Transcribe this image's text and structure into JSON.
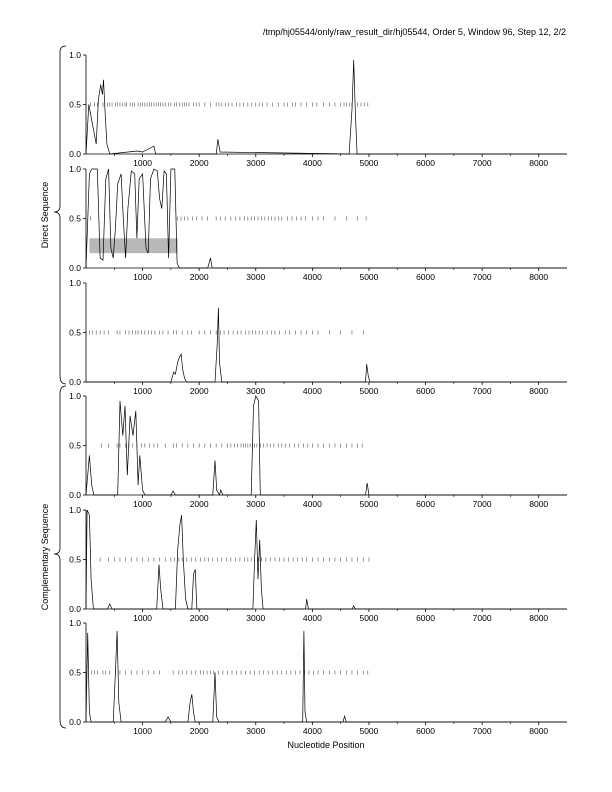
{
  "header": {
    "path_text": "/tmp/hj05544/only/raw_result_dir/hj05544, Order 5, Window 96, Step 12, 2/2"
  },
  "x_axis_label": "Nucleotide Position",
  "group_labels": {
    "direct": "Direct Sequence",
    "complementary": "Complementary Sequence"
  },
  "chart_data": [
    {
      "type": "line",
      "group": "direct",
      "frame": 1,
      "xlim": [
        0,
        8500
      ],
      "ylim": [
        0,
        1
      ],
      "yticks": [
        "0.0",
        "0.5",
        "1.0"
      ],
      "xticks": [
        1000,
        2000,
        3000,
        4000,
        5000,
        6000,
        7000,
        8000
      ],
      "points": [
        [
          0,
          0
        ],
        [
          50,
          0.5
        ],
        [
          180,
          0.1
        ],
        [
          220,
          0.55
        ],
        [
          260,
          0.7
        ],
        [
          290,
          0.6
        ],
        [
          310,
          0.75
        ],
        [
          340,
          0.4
        ],
        [
          370,
          0.1
        ],
        [
          420,
          0
        ],
        [
          900,
          0.03
        ],
        [
          1000,
          0.02
        ],
        [
          1200,
          0.08
        ],
        [
          1230,
          0
        ],
        [
          2300,
          0
        ],
        [
          2330,
          0.15
        ],
        [
          2370,
          0.02
        ],
        [
          4650,
          0
        ],
        [
          4700,
          0.45
        ],
        [
          4730,
          0.95
        ],
        [
          4760,
          0.4
        ],
        [
          4790,
          0
        ],
        [
          8500,
          0
        ]
      ],
      "marks_y": 0.5,
      "marks": [
        80,
        150,
        200,
        300,
        380,
        420,
        460,
        520,
        560,
        600,
        650,
        690,
        720,
        780,
        820,
        860,
        920,
        960,
        1000,
        1040,
        1080,
        1120,
        1160,
        1200,
        1240,
        1280,
        1320,
        1360,
        1400,
        1460,
        1500,
        1560,
        1600,
        1650,
        1700,
        1740,
        1780,
        1820,
        1900,
        1950,
        2000,
        2100,
        2200,
        2300,
        2350,
        2400,
        2460,
        2520,
        2580,
        2660,
        2720,
        2780,
        2860,
        2920,
        3000,
        3060,
        3120,
        3200,
        3300,
        3400,
        3500,
        3560,
        3650,
        3700,
        3800,
        3900,
        4000,
        4080,
        4200,
        4300,
        4400,
        4500,
        4560,
        4600,
        4660,
        4700,
        4800,
        4860,
        4920,
        4980
      ]
    },
    {
      "type": "line",
      "group": "direct",
      "frame": 2,
      "xlim": [
        0,
        8500
      ],
      "ylim": [
        0,
        1
      ],
      "yticks": [
        "0.0",
        "0.5",
        "1.0"
      ],
      "xticks": [
        1000,
        2000,
        3000,
        4000,
        5000,
        6000,
        7000,
        8000
      ],
      "points": [
        [
          0,
          0
        ],
        [
          60,
          0.95
        ],
        [
          100,
          1
        ],
        [
          200,
          1
        ],
        [
          250,
          0.1
        ],
        [
          300,
          0.08
        ],
        [
          350,
          0.9
        ],
        [
          400,
          1
        ],
        [
          440,
          0.2
        ],
        [
          480,
          0.1
        ],
        [
          520,
          0.4
        ],
        [
          560,
          0.85
        ],
        [
          620,
          0.95
        ],
        [
          660,
          0.5
        ],
        [
          700,
          0.1
        ],
        [
          740,
          0.6
        ],
        [
          800,
          0.98
        ],
        [
          860,
          0.95
        ],
        [
          900,
          0.3
        ],
        [
          940,
          0.9
        ],
        [
          1000,
          0.95
        ],
        [
          1060,
          0.2
        ],
        [
          1100,
          0.15
        ],
        [
          1140,
          0.9
        ],
        [
          1200,
          1
        ],
        [
          1260,
          0.98
        ],
        [
          1300,
          0.7
        ],
        [
          1340,
          0.6
        ],
        [
          1380,
          0.98
        ],
        [
          1420,
          0.95
        ],
        [
          1460,
          0.1
        ],
        [
          1500,
          1
        ],
        [
          1570,
          1
        ],
        [
          1610,
          0.05
        ],
        [
          1650,
          0
        ],
        [
          2150,
          0
        ],
        [
          2200,
          0.1
        ],
        [
          2230,
          0
        ],
        [
          8500,
          0
        ]
      ],
      "highlight_band": {
        "x": [
          60,
          1620
        ],
        "y": [
          0.15,
          0.3
        ]
      },
      "marks_y": 0.5,
      "marks": [
        80,
        1620,
        1680,
        1740,
        1800,
        1880,
        1950,
        2050,
        2150,
        2300,
        2380,
        2460,
        2560,
        2640,
        2720,
        2800,
        2860,
        2920,
        2980,
        3040,
        3100,
        3160,
        3220,
        3280,
        3340,
        3400,
        3460,
        3560,
        3640,
        3720,
        3800,
        3880,
        4000,
        4100,
        4200,
        4400,
        4600,
        4800,
        4950
      ]
    },
    {
      "type": "line",
      "group": "direct",
      "frame": 3,
      "xlim": [
        0,
        8500
      ],
      "ylim": [
        0,
        1
      ],
      "yticks": [
        "0.0",
        "0.5",
        "1.0"
      ],
      "xticks": [
        1000,
        2000,
        3000,
        4000,
        5000,
        6000,
        7000,
        8000
      ],
      "points": [
        [
          0,
          0
        ],
        [
          1500,
          0
        ],
        [
          1550,
          0.1
        ],
        [
          1580,
          0.08
        ],
        [
          1620,
          0.2
        ],
        [
          1650,
          0.25
        ],
        [
          1680,
          0.28
        ],
        [
          1710,
          0.12
        ],
        [
          1740,
          0.04
        ],
        [
          1780,
          0
        ],
        [
          2280,
          0
        ],
        [
          2320,
          0.4
        ],
        [
          2340,
          0.75
        ],
        [
          2360,
          0.2
        ],
        [
          2400,
          0
        ],
        [
          4940,
          0
        ],
        [
          4960,
          0.18
        ],
        [
          4990,
          0.05
        ],
        [
          5020,
          0
        ],
        [
          8500,
          0
        ]
      ],
      "marks_y": 0.5,
      "marks": [
        60,
        120,
        180,
        250,
        320,
        400,
        550,
        600,
        700,
        760,
        820,
        880,
        920,
        980,
        1040,
        1100,
        1160,
        1220,
        1300,
        1360,
        1450,
        1550,
        1600,
        1700,
        1800,
        1860,
        2000,
        2100,
        2200,
        2300,
        2380,
        2440,
        2520,
        2600,
        2680,
        2740,
        2820,
        2880,
        2940,
        3000,
        3060,
        3120,
        3200,
        3280,
        3340,
        3420,
        3520,
        3600,
        3700,
        3800,
        3900,
        4000,
        4100,
        4300,
        4500,
        4700,
        4900
      ]
    },
    {
      "type": "line",
      "group": "complementary",
      "frame": 4,
      "xlim": [
        0,
        8500
      ],
      "ylim": [
        0,
        1
      ],
      "yticks": [
        "0.0",
        "0.5",
        "1.0"
      ],
      "xticks": [
        1000,
        2000,
        3000,
        4000,
        5000,
        6000,
        7000,
        8000
      ],
      "points": [
        [
          0,
          0
        ],
        [
          60,
          0.4
        ],
        [
          100,
          0.1
        ],
        [
          140,
          0
        ],
        [
          560,
          0
        ],
        [
          600,
          0.95
        ],
        [
          650,
          0.6
        ],
        [
          690,
          0.9
        ],
        [
          730,
          0.2
        ],
        [
          780,
          0.8
        ],
        [
          830,
          0.6
        ],
        [
          880,
          0.85
        ],
        [
          920,
          0.1
        ],
        [
          950,
          0.4
        ],
        [
          1000,
          0.05
        ],
        [
          1040,
          0
        ],
        [
          1500,
          0
        ],
        [
          1540,
          0.04
        ],
        [
          1580,
          0
        ],
        [
          2240,
          0
        ],
        [
          2280,
          0.35
        ],
        [
          2310,
          0.05
        ],
        [
          2360,
          0
        ],
        [
          2380,
          0.05
        ],
        [
          2420,
          0
        ],
        [
          2920,
          0
        ],
        [
          2960,
          0.9
        ],
        [
          3000,
          1
        ],
        [
          3050,
          0.95
        ],
        [
          3080,
          0
        ],
        [
          4940,
          0
        ],
        [
          4970,
          0.12
        ],
        [
          5000,
          0
        ],
        [
          8500,
          0
        ]
      ],
      "marks_y": 0.5,
      "marks": [
        270,
        400,
        550,
        600,
        700,
        760,
        820,
        900,
        980,
        1040,
        1120,
        1200,
        1260,
        1400,
        1550,
        1600,
        1700,
        1800,
        1900,
        2000,
        2100,
        2200,
        2300,
        2400,
        2500,
        2560,
        2620,
        2680,
        2740,
        2780,
        2820,
        2860,
        2900,
        2940,
        2980,
        3020,
        3080,
        3140,
        3200,
        3260,
        3320,
        3400,
        3460,
        3520,
        3600,
        3680,
        3760,
        3840,
        3920,
        4000,
        4100,
        4200,
        4300,
        4400,
        4500,
        4600,
        4700,
        4800,
        4880
      ]
    },
    {
      "type": "line",
      "group": "complementary",
      "frame": 5,
      "xlim": [
        0,
        8500
      ],
      "ylim": [
        0,
        1
      ],
      "yticks": [
        "0.0",
        "0.5",
        "1.0"
      ],
      "xticks": [
        1000,
        2000,
        3000,
        4000,
        5000,
        6000,
        7000,
        8000
      ],
      "points": [
        [
          0,
          0
        ],
        [
          20,
          1
        ],
        [
          60,
          0.95
        ],
        [
          90,
          0.3
        ],
        [
          130,
          0
        ],
        [
          380,
          0
        ],
        [
          420,
          0.05
        ],
        [
          460,
          0
        ],
        [
          1250,
          0
        ],
        [
          1290,
          0.45
        ],
        [
          1320,
          0.2
        ],
        [
          1360,
          0
        ],
        [
          1580,
          0
        ],
        [
          1620,
          0.6
        ],
        [
          1660,
          0.85
        ],
        [
          1690,
          0.95
        ],
        [
          1720,
          0.5
        ],
        [
          1760,
          0.1
        ],
        [
          1800,
          0
        ],
        [
          1870,
          0
        ],
        [
          1900,
          0.35
        ],
        [
          1930,
          0.4
        ],
        [
          1960,
          0
        ],
        [
          2950,
          0
        ],
        [
          2980,
          0.5
        ],
        [
          3010,
          0.9
        ],
        [
          3040,
          0.3
        ],
        [
          3070,
          0.7
        ],
        [
          3100,
          0.2
        ],
        [
          3130,
          0
        ],
        [
          3880,
          0
        ],
        [
          3900,
          0.1
        ],
        [
          3930,
          0
        ],
        [
          4700,
          0
        ],
        [
          4730,
          0.03
        ],
        [
          4760,
          0
        ],
        [
          8500,
          0
        ]
      ],
      "marks_y": 0.5,
      "marks": [
        250,
        400,
        500,
        600,
        700,
        800,
        900,
        1000,
        1100,
        1200,
        1300,
        1400,
        1500,
        1560,
        1640,
        1700,
        1780,
        1860,
        1940,
        2020,
        2100,
        2160,
        2240,
        2320,
        2400,
        2480,
        2560,
        2640,
        2720,
        2800,
        2860,
        2920,
        2980,
        3040,
        3100,
        3180,
        3260,
        3340,
        3420,
        3500,
        3580,
        3660,
        3740,
        3820,
        3900,
        4000,
        4100,
        4200,
        4300,
        4400,
        4500,
        4600,
        4700,
        4800,
        4900,
        5000
      ]
    },
    {
      "type": "line",
      "group": "complementary",
      "frame": 6,
      "xlim": [
        0,
        8500
      ],
      "ylim": [
        0,
        1
      ],
      "yticks": [
        "0.0",
        "0.5",
        "1.0"
      ],
      "xticks": [
        1000,
        2000,
        3000,
        4000,
        5000,
        6000,
        7000,
        8000
      ],
      "points": [
        [
          0,
          0
        ],
        [
          30,
          0.9
        ],
        [
          60,
          0.1
        ],
        [
          90,
          0
        ],
        [
          480,
          0
        ],
        [
          520,
          0.5
        ],
        [
          550,
          0.92
        ],
        [
          580,
          0.2
        ],
        [
          620,
          0
        ],
        [
          1400,
          0
        ],
        [
          1450,
          0.05
        ],
        [
          1500,
          0
        ],
        [
          1800,
          0
        ],
        [
          1840,
          0.2
        ],
        [
          1870,
          0.28
        ],
        [
          1900,
          0.1
        ],
        [
          1930,
          0
        ],
        [
          2240,
          0
        ],
        [
          2280,
          0.5
        ],
        [
          2310,
          0.05
        ],
        [
          2350,
          0
        ],
        [
          3830,
          0
        ],
        [
          3850,
          0.92
        ],
        [
          3870,
          0.1
        ],
        [
          3900,
          0
        ],
        [
          4540,
          0
        ],
        [
          4570,
          0.06
        ],
        [
          4600,
          0
        ],
        [
          8500,
          0
        ]
      ],
      "marks_y": 0.5,
      "marks": [
        100,
        150,
        200,
        300,
        350,
        420,
        520,
        600,
        700,
        800,
        900,
        1000,
        1100,
        1200,
        1300,
        1540,
        1640,
        1700,
        1780,
        1860,
        1940,
        2020,
        2080,
        2140,
        2200,
        2260,
        2340,
        2420,
        2500,
        2580,
        2660,
        2740,
        2820,
        2900,
        2980,
        3060,
        3140,
        3220,
        3300,
        3380,
        3460,
        3540,
        3620,
        3700,
        3780,
        3860,
        3940,
        4020,
        4100,
        4200,
        4300,
        4400,
        4500,
        4600,
        4700,
        4800,
        4900,
        4980
      ]
    }
  ]
}
